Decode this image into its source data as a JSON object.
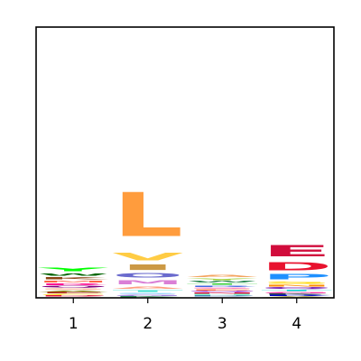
{
  "chart_data": {
    "type": "sequence_logo",
    "title": "",
    "xlabel": "",
    "ylabel": "",
    "x_ticks": [
      "1",
      "2",
      "3",
      "4"
    ],
    "y_max": 1.0,
    "positions": [
      {
        "position": "1",
        "letters": [
          {
            "char": "Y",
            "height": 0.022,
            "color": "#00ff00"
          },
          {
            "char": "W",
            "height": 0.015,
            "color": "#006400"
          },
          {
            "char": "K",
            "height": 0.012,
            "color": "#8b4513"
          },
          {
            "char": "M",
            "height": 0.011,
            "color": "#ff6347"
          },
          {
            "char": "R",
            "height": 0.01,
            "color": "#ff1493"
          },
          {
            "char": "Q",
            "height": 0.009,
            "color": "#800080"
          },
          {
            "char": "S",
            "height": 0.008,
            "color": "#ffa07a"
          },
          {
            "char": "A",
            "height": 0.007,
            "color": "#808000"
          },
          {
            "char": "C",
            "height": 0.006,
            "color": "#ffd700"
          },
          {
            "char": "E",
            "height": 0.006,
            "color": "#b22222"
          },
          {
            "char": "D",
            "height": 0.005,
            "color": "#dc143c"
          },
          {
            "char": "G",
            "height": 0.004,
            "color": "#4b0082"
          }
        ]
      },
      {
        "position": "2",
        "letters": [
          {
            "char": "L",
            "height": 0.262,
            "color": "#ff9c3d"
          },
          {
            "char": "V",
            "height": 0.045,
            "color": "#ffcc44"
          },
          {
            "char": "I",
            "height": 0.033,
            "color": "#cc9944"
          },
          {
            "char": "O",
            "height": 0.026,
            "color": "#6a6acd"
          },
          {
            "char": "M",
            "height": 0.025,
            "color": "#da80d6"
          },
          {
            "char": "A",
            "height": 0.015,
            "color": "#ff9f80"
          },
          {
            "char": "T",
            "height": 0.011,
            "color": "#40e0d0"
          },
          {
            "char": "S",
            "height": 0.008,
            "color": "#87cefa"
          },
          {
            "char": "G",
            "height": 0.006,
            "color": "#9370db"
          },
          {
            "char": "K",
            "height": 0.005,
            "color": "#2e8b57"
          }
        ]
      },
      {
        "position": "3",
        "letters": [
          {
            "char": "A",
            "height": 0.012,
            "color": "#f4a460"
          },
          {
            "char": "W",
            "height": 0.009,
            "color": "#2e8b57"
          },
          {
            "char": "Y",
            "height": 0.011,
            "color": "#9acd32"
          },
          {
            "char": "T",
            "height": 0.008,
            "color": "#32cd32"
          },
          {
            "char": "S",
            "height": 0.007,
            "color": "#ff69b4"
          },
          {
            "char": "R",
            "height": 0.007,
            "color": "#4169e1"
          },
          {
            "char": "N",
            "height": 0.006,
            "color": "#dc143c"
          },
          {
            "char": "Q",
            "height": 0.006,
            "color": "#9932cc"
          },
          {
            "char": "E",
            "height": 0.006,
            "color": "#ff7f50"
          },
          {
            "char": "D",
            "height": 0.005,
            "color": "#4682b4"
          },
          {
            "char": "H",
            "height": 0.005,
            "color": "#7fffd4"
          },
          {
            "char": "G",
            "height": 0.004,
            "color": "#ffb6c1"
          }
        ]
      },
      {
        "position": "4",
        "letters": [
          {
            "char": "E",
            "height": 0.066,
            "color": "#d10c3c"
          },
          {
            "char": "D",
            "height": 0.048,
            "color": "#e8122e"
          },
          {
            "char": "P",
            "height": 0.03,
            "color": "#1e90ff"
          },
          {
            "char": "S",
            "height": 0.012,
            "color": "#ffd700"
          },
          {
            "char": "N",
            "height": 0.01,
            "color": "#ff8c00"
          },
          {
            "char": "Q",
            "height": 0.009,
            "color": "#6a0dad"
          },
          {
            "char": "T",
            "height": 0.008,
            "color": "#00ced1"
          },
          {
            "char": "G",
            "height": 0.007,
            "color": "#ff1493"
          },
          {
            "char": "K",
            "height": 0.006,
            "color": "#2f4f4f"
          },
          {
            "char": "A",
            "height": 0.005,
            "color": "#bdb76b"
          },
          {
            "char": "R",
            "height": 0.005,
            "color": "#0000cd"
          }
        ]
      }
    ],
    "grid": false,
    "legend": "none"
  }
}
